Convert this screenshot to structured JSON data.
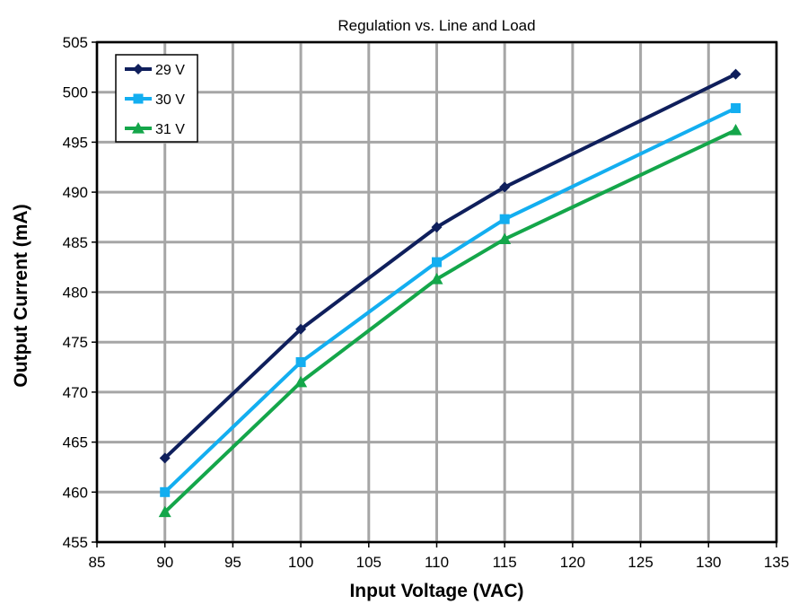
{
  "chart_data": {
    "type": "line",
    "title": "Regulation vs. Line and Load",
    "xlabel": "Input Voltage (VAC)",
    "ylabel": "Output Current (mA)",
    "xlim": [
      85,
      135
    ],
    "ylim": [
      455,
      505
    ],
    "x_ticks": [
      85,
      90,
      95,
      100,
      105,
      110,
      115,
      120,
      125,
      130,
      135
    ],
    "y_ticks": [
      455,
      460,
      465,
      470,
      475,
      480,
      485,
      490,
      495,
      500,
      505
    ],
    "grid": true,
    "legend_position": "top-left",
    "x": [
      90,
      100,
      110,
      115,
      132
    ],
    "series": [
      {
        "name": "29 V",
        "color": "#0f1f5c",
        "marker": "diamond",
        "values": [
          463.4,
          476.3,
          486.5,
          490.5,
          501.8
        ]
      },
      {
        "name": "30 V",
        "color": "#13aef0",
        "marker": "square",
        "values": [
          460.0,
          473.0,
          483.0,
          487.3,
          498.4
        ]
      },
      {
        "name": "31 V",
        "color": "#14a64a",
        "marker": "triangle",
        "values": [
          458.0,
          471.0,
          481.3,
          485.3,
          496.2
        ]
      }
    ]
  }
}
